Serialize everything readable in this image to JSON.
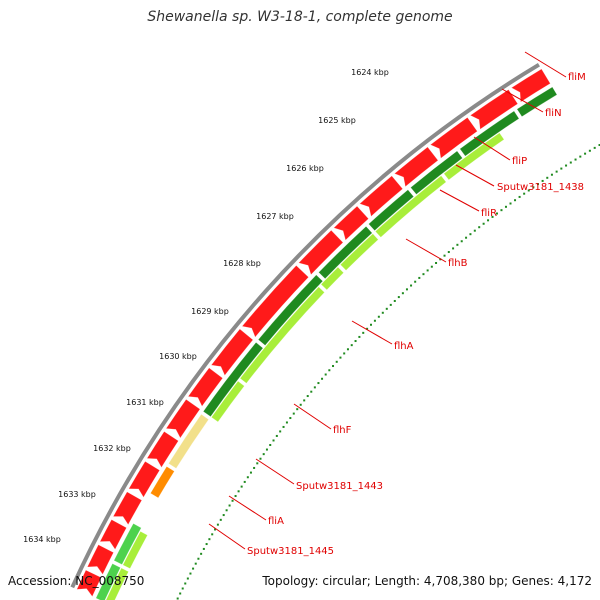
{
  "title": "Shewanella sp. W3-18-1, complete genome",
  "accession": "Accession: NC_008750",
  "topology": "Topology: circular; Length: 4,708,380 bp; Genes: 4,172",
  "colors": {
    "backbone": "#8a8a8a",
    "forward_cds": "#ff1a1a",
    "reverse_cds_dark": "#1f8a1f",
    "reverse_cds_light": "#a8ee3a",
    "light_green": "#4dd24d",
    "pale_gene": "#f2e08a",
    "orange_gene": "#ff8c00",
    "label_line": "#e00000",
    "tick_dots": "#1f8a1f"
  },
  "ticks": [
    {
      "label": "1624 kbp"
    },
    {
      "label": "1625 kbp"
    },
    {
      "label": "1626 kbp"
    },
    {
      "label": "1627 kbp"
    },
    {
      "label": "1628 kbp"
    },
    {
      "label": "1629 kbp"
    },
    {
      "label": "1630 kbp"
    },
    {
      "label": "1631 kbp"
    },
    {
      "label": "1632 kbp"
    },
    {
      "label": "1633 kbp"
    },
    {
      "label": "1634 kbp"
    }
  ],
  "genes": [
    {
      "label": "fliM"
    },
    {
      "label": "fliN"
    },
    {
      "label": "fliP"
    },
    {
      "label": "Sputw3181_1438"
    },
    {
      "label": "fliR"
    },
    {
      "label": "flhB"
    },
    {
      "label": "flhA"
    },
    {
      "label": "flhF"
    },
    {
      "label": "Sputw3181_1443"
    },
    {
      "label": "fliA"
    },
    {
      "label": "Sputw3181_1445"
    }
  ]
}
